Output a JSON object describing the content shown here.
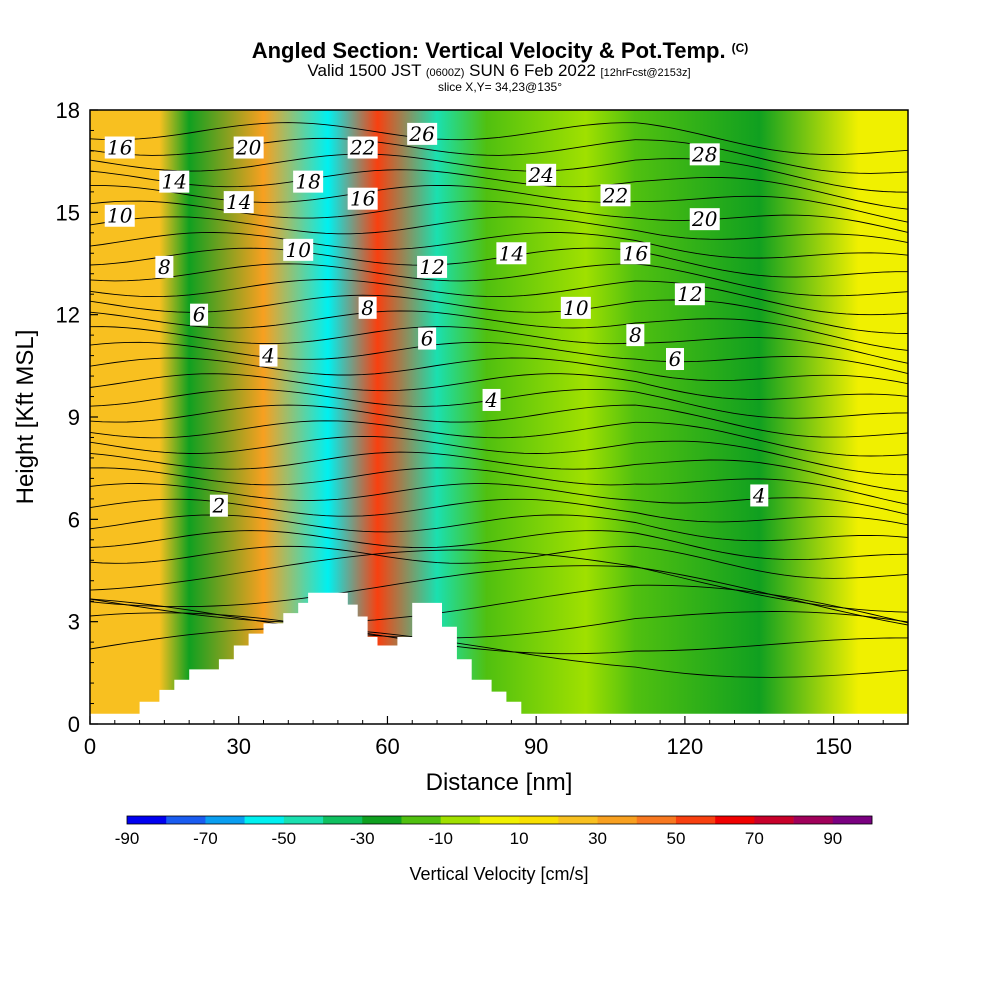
{
  "header": {
    "title": "Angled Section: Vertical Velocity & Pot.Temp.",
    "copyright": "(C)",
    "valid_prefix": "Valid 1500 JST",
    "valid_utc": "(0600Z)",
    "valid_date": "SUN 6 Feb 2022",
    "forecast": "[12hrFcst@2153z]",
    "slice": "slice X,Y= 34,23@135°"
  },
  "chart_data": {
    "type": "heatmap",
    "xlabel": "Distance [nm]",
    "ylabel": "Height [Kft MSL]",
    "xlim": [
      0,
      165
    ],
    "ylim": [
      0,
      18
    ],
    "xticks": [
      0,
      30,
      60,
      90,
      120,
      150
    ],
    "yticks": [
      0,
      3,
      6,
      9,
      12,
      15,
      18
    ],
    "grid": false,
    "colorbar": {
      "label": "Vertical Velocity [cm/s]",
      "levels": [
        -90,
        -80,
        -70,
        -60,
        -50,
        -40,
        -30,
        -20,
        -10,
        0,
        10,
        20,
        30,
        40,
        50,
        60,
        70,
        80,
        90,
        100
      ],
      "tick_labels": [
        "-90",
        "-70",
        "-50",
        "-30",
        "-10",
        "10",
        "30",
        "50",
        "70",
        "90"
      ],
      "colors": [
        "#0000f0",
        "#1a5cf0",
        "#0a9ef0",
        "#00f0f0",
        "#1ae0b0",
        "#10c060",
        "#10a020",
        "#50c010",
        "#a0e000",
        "#f0f000",
        "#f8e000",
        "#f8c020",
        "#f8a020",
        "#f87820",
        "#f84010",
        "#f00000",
        "#c8002a",
        "#a0005a",
        "#7a0080"
      ]
    },
    "velocity_bands": [
      {
        "x_center": 14,
        "value": 25
      },
      {
        "x_center": 20,
        "value": -25
      },
      {
        "x_center": 35,
        "value": 35
      },
      {
        "x_center": 48,
        "value": -55
      },
      {
        "x_center": 58,
        "value": 55
      },
      {
        "x_center": 70,
        "value": -45
      },
      {
        "x_center": 80,
        "value": -20
      },
      {
        "x_center": 100,
        "value": -10
      },
      {
        "x_center": 110,
        "value": -20
      },
      {
        "x_center": 135,
        "value": -30
      },
      {
        "x_center": 155,
        "value": 5
      }
    ],
    "isentrope_labels": [
      {
        "text": "16",
        "x": 6,
        "y": 16.9
      },
      {
        "text": "20",
        "x": 32,
        "y": 16.9
      },
      {
        "text": "22",
        "x": 55,
        "y": 16.9
      },
      {
        "text": "26",
        "x": 67,
        "y": 17.3
      },
      {
        "text": "28",
        "x": 124,
        "y": 16.7
      },
      {
        "text": "14",
        "x": 17,
        "y": 15.9
      },
      {
        "text": "18",
        "x": 44,
        "y": 15.9
      },
      {
        "text": "24",
        "x": 91,
        "y": 16.1
      },
      {
        "text": "14",
        "x": 30,
        "y": 15.3
      },
      {
        "text": "16",
        "x": 55,
        "y": 15.4
      },
      {
        "text": "22",
        "x": 106,
        "y": 15.5
      },
      {
        "text": "10",
        "x": 6,
        "y": 14.9
      },
      {
        "text": "20",
        "x": 124,
        "y": 14.8
      },
      {
        "text": "10",
        "x": 42,
        "y": 13.9
      },
      {
        "text": "12",
        "x": 69,
        "y": 13.4
      },
      {
        "text": "14",
        "x": 85,
        "y": 13.8
      },
      {
        "text": "16",
        "x": 110,
        "y": 13.8
      },
      {
        "text": "8",
        "x": 15,
        "y": 13.4
      },
      {
        "text": "12",
        "x": 121,
        "y": 12.6
      },
      {
        "text": "10",
        "x": 98,
        "y": 12.2
      },
      {
        "text": "8",
        "x": 56,
        "y": 12.2
      },
      {
        "text": "6",
        "x": 22,
        "y": 12.0
      },
      {
        "text": "8",
        "x": 110,
        "y": 11.4
      },
      {
        "text": "6",
        "x": 68,
        "y": 11.3
      },
      {
        "text": "4",
        "x": 36,
        "y": 10.8
      },
      {
        "text": "6",
        "x": 118,
        "y": 10.7
      },
      {
        "text": "4",
        "x": 81,
        "y": 9.5
      },
      {
        "text": "4",
        "x": 135,
        "y": 6.7
      },
      {
        "text": "2",
        "x": 26,
        "y": 6.4
      }
    ],
    "terrain": [
      [
        0,
        0.3
      ],
      [
        10,
        0.3
      ],
      [
        10,
        0.65
      ],
      [
        14,
        0.65
      ],
      [
        14,
        1.0
      ],
      [
        17,
        1.0
      ],
      [
        17,
        1.3
      ],
      [
        20,
        1.3
      ],
      [
        20,
        1.6
      ],
      [
        26,
        1.6
      ],
      [
        26,
        1.9
      ],
      [
        29,
        1.9
      ],
      [
        29,
        2.3
      ],
      [
        32,
        2.3
      ],
      [
        32,
        2.65
      ],
      [
        35,
        2.65
      ],
      [
        35,
        2.95
      ],
      [
        39,
        2.95
      ],
      [
        39,
        3.25
      ],
      [
        42,
        3.25
      ],
      [
        42,
        3.55
      ],
      [
        44,
        3.55
      ],
      [
        44,
        3.85
      ],
      [
        52,
        3.85
      ],
      [
        52,
        3.5
      ],
      [
        54,
        3.5
      ],
      [
        54,
        3.15
      ],
      [
        56,
        3.15
      ],
      [
        56,
        2.55
      ],
      [
        58,
        2.55
      ],
      [
        58,
        2.3
      ],
      [
        62,
        2.3
      ],
      [
        62,
        2.55
      ],
      [
        65,
        2.55
      ],
      [
        65,
        3.55
      ],
      [
        71,
        3.55
      ],
      [
        71,
        2.85
      ],
      [
        74,
        2.85
      ],
      [
        74,
        1.9
      ],
      [
        77,
        1.9
      ],
      [
        77,
        1.3
      ],
      [
        81,
        1.3
      ],
      [
        81,
        0.95
      ],
      [
        84,
        0.95
      ],
      [
        84,
        0.65
      ],
      [
        87,
        0.65
      ],
      [
        87,
        0.3
      ],
      [
        165,
        0.3
      ]
    ]
  }
}
